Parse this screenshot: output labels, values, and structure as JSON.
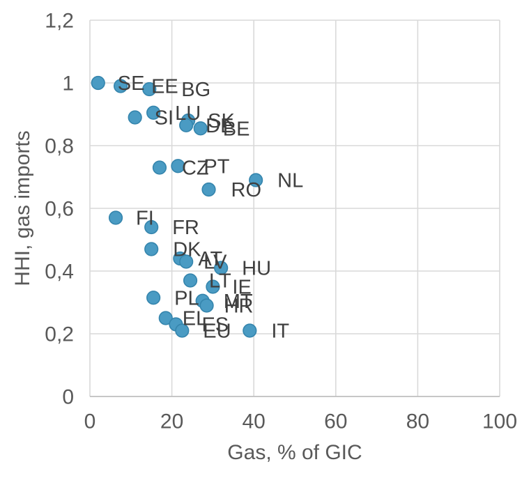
{
  "chart_data": {
    "type": "scatter",
    "title": "",
    "xlabel": "Gas, % of GIC",
    "ylabel": "HHI, gas imports",
    "xlim": [
      0,
      100
    ],
    "ylim": [
      0,
      1.2
    ],
    "grid": true,
    "legend": false,
    "decimal_separator": ",",
    "x_ticks": [
      {
        "value": 0,
        "label": "0"
      },
      {
        "value": 20,
        "label": "20"
      },
      {
        "value": 40,
        "label": "40"
      },
      {
        "value": 60,
        "label": "60"
      },
      {
        "value": 80,
        "label": "80"
      },
      {
        "value": 100,
        "label": "100"
      }
    ],
    "y_ticks": [
      {
        "value": 0,
        "label": "0"
      },
      {
        "value": 0.2,
        "label": "0,2"
      },
      {
        "value": 0.4,
        "label": "0,4"
      },
      {
        "value": 0.6,
        "label": "0,6"
      },
      {
        "value": 0.8,
        "label": "0,8"
      },
      {
        "value": 1,
        "label": "1"
      },
      {
        "value": 1.2,
        "label": "1,2"
      }
    ],
    "points": [
      {
        "code": "SE",
        "x": 2,
        "y": 1.0,
        "label_dx": 28
      },
      {
        "code": "EE",
        "x": 7.5,
        "y": 0.99,
        "label_dx": 44
      },
      {
        "code": "BG",
        "x": 14.5,
        "y": 0.98,
        "label_dx": 46
      },
      {
        "code": "SI",
        "x": 11,
        "y": 0.89,
        "label_dx": 28
      },
      {
        "code": "LU",
        "x": 15.5,
        "y": 0.905,
        "label_dx": 31
      },
      {
        "code": "SK",
        "x": 24,
        "y": 0.88,
        "label_dx": 28
      },
      {
        "code": "DE",
        "x": 23.5,
        "y": 0.865,
        "label_dx": 28
      },
      {
        "code": "BE",
        "x": 27,
        "y": 0.855,
        "label_dx": 32
      },
      {
        "code": "PT",
        "x": 21.5,
        "y": 0.735,
        "label_dx": 37
      },
      {
        "code": "CZ",
        "x": 17,
        "y": 0.73,
        "label_dx": 32
      },
      {
        "code": "NL",
        "x": 40.5,
        "y": 0.69,
        "label_dx": 31
      },
      {
        "code": "RO",
        "x": 29,
        "y": 0.66,
        "label_dx": 32
      },
      {
        "code": "FI",
        "x": 6.3,
        "y": 0.57,
        "label_dx": 29
      },
      {
        "code": "FR",
        "x": 15,
        "y": 0.54,
        "label_dx": 30
      },
      {
        "code": "DK",
        "x": 15,
        "y": 0.47,
        "label_dx": 31
      },
      {
        "code": "AT",
        "x": 22,
        "y": 0.44,
        "label_dx": 26
      },
      {
        "code": "LV",
        "x": 23.5,
        "y": 0.43,
        "label_dx": 25
      },
      {
        "code": "HU",
        "x": 32,
        "y": 0.41,
        "label_dx": 30
      },
      {
        "code": "LT",
        "x": 24.5,
        "y": 0.37,
        "label_dx": 27
      },
      {
        "code": "IE",
        "x": 30,
        "y": 0.35,
        "label_dx": 28
      },
      {
        "code": "PL",
        "x": 15.5,
        "y": 0.315,
        "label_dx": 30
      },
      {
        "code": "MT",
        "x": 27.5,
        "y": 0.305,
        "label_dx": 30
      },
      {
        "code": "HR",
        "x": 28.5,
        "y": 0.29,
        "label_dx": 25
      },
      {
        "code": "EL",
        "x": 18.5,
        "y": 0.25,
        "label_dx": 24
      },
      {
        "code": "ES",
        "x": 21,
        "y": 0.23,
        "label_dx": 37
      },
      {
        "code": "EU",
        "x": 22.5,
        "y": 0.21,
        "label_dx": 30
      },
      {
        "code": "IT",
        "x": 39,
        "y": 0.21,
        "label_dx": 31
      }
    ],
    "colors": {
      "marker_fill": "#4a9bc3",
      "marker_stroke": "#3585ad",
      "gridline": "#d9d9d9",
      "axis_line": "#bfbfbf",
      "tick_text": "#595959",
      "axis_title_text": "#595959",
      "data_label_text": "#3f3f3f",
      "background": "#ffffff"
    }
  }
}
